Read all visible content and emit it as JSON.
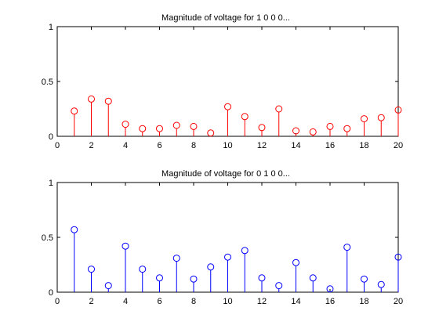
{
  "chart_data": [
    {
      "type": "stem",
      "title": "Magnitude of voltage for 1 0 0 0...",
      "color": "#ff0000",
      "x": [
        1,
        2,
        3,
        4,
        5,
        6,
        7,
        8,
        9,
        10,
        11,
        12,
        13,
        14,
        15,
        16,
        17,
        18,
        19,
        20
      ],
      "values": [
        0.23,
        0.34,
        0.32,
        0.11,
        0.07,
        0.07,
        0.1,
        0.09,
        0.03,
        0.27,
        0.18,
        0.08,
        0.25,
        0.05,
        0.04,
        0.09,
        0.07,
        0.16,
        0.17,
        0.24
      ],
      "xlim": [
        0,
        20
      ],
      "ylim": [
        0,
        1
      ],
      "xticks": [
        "0",
        "2",
        "4",
        "6",
        "8",
        "10",
        "12",
        "14",
        "16",
        "18",
        "20"
      ],
      "yticks": [
        "0",
        "0.5",
        "1"
      ]
    },
    {
      "type": "stem",
      "title": "Magnitude of voltage for 0 1 0 0...",
      "color": "#0000ff",
      "x": [
        1,
        2,
        3,
        4,
        5,
        6,
        7,
        8,
        9,
        10,
        11,
        12,
        13,
        14,
        15,
        16,
        17,
        18,
        19,
        20
      ],
      "values": [
        0.57,
        0.21,
        0.06,
        0.42,
        0.21,
        0.13,
        0.31,
        0.12,
        0.23,
        0.32,
        0.38,
        0.13,
        0.06,
        0.27,
        0.13,
        0.03,
        0.41,
        0.12,
        0.07,
        0.32
      ],
      "xlim": [
        0,
        20
      ],
      "ylim": [
        0,
        1
      ],
      "xticks": [
        "0",
        "2",
        "4",
        "6",
        "8",
        "10",
        "12",
        "14",
        "16",
        "18",
        "20"
      ],
      "yticks": [
        "0",
        "0.5",
        "1"
      ]
    }
  ]
}
